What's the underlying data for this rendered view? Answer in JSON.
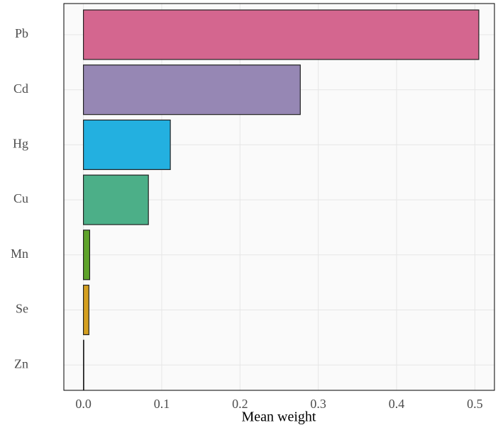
{
  "chart_data": {
    "type": "bar",
    "orientation": "horizontal",
    "categories": [
      "Pb",
      "Cd",
      "Hg",
      "Cu",
      "Mn",
      "Se",
      "Zn"
    ],
    "values": [
      0.505,
      0.277,
      0.111,
      0.083,
      0.008,
      0.007,
      0.0005
    ],
    "colors": [
      "#d4668f",
      "#9687b4",
      "#23b0e0",
      "#4caf88",
      "#5ea32a",
      "#d5a020",
      "#3b3b3b"
    ],
    "x_label": "Mean weight",
    "xlim": [
      -0.025,
      0.525
    ],
    "xticks": [
      {
        "value": 0,
        "label": "0.0"
      },
      0.1,
      0.2,
      0.3,
      0.4,
      0.5
    ],
    "grid": true
  }
}
